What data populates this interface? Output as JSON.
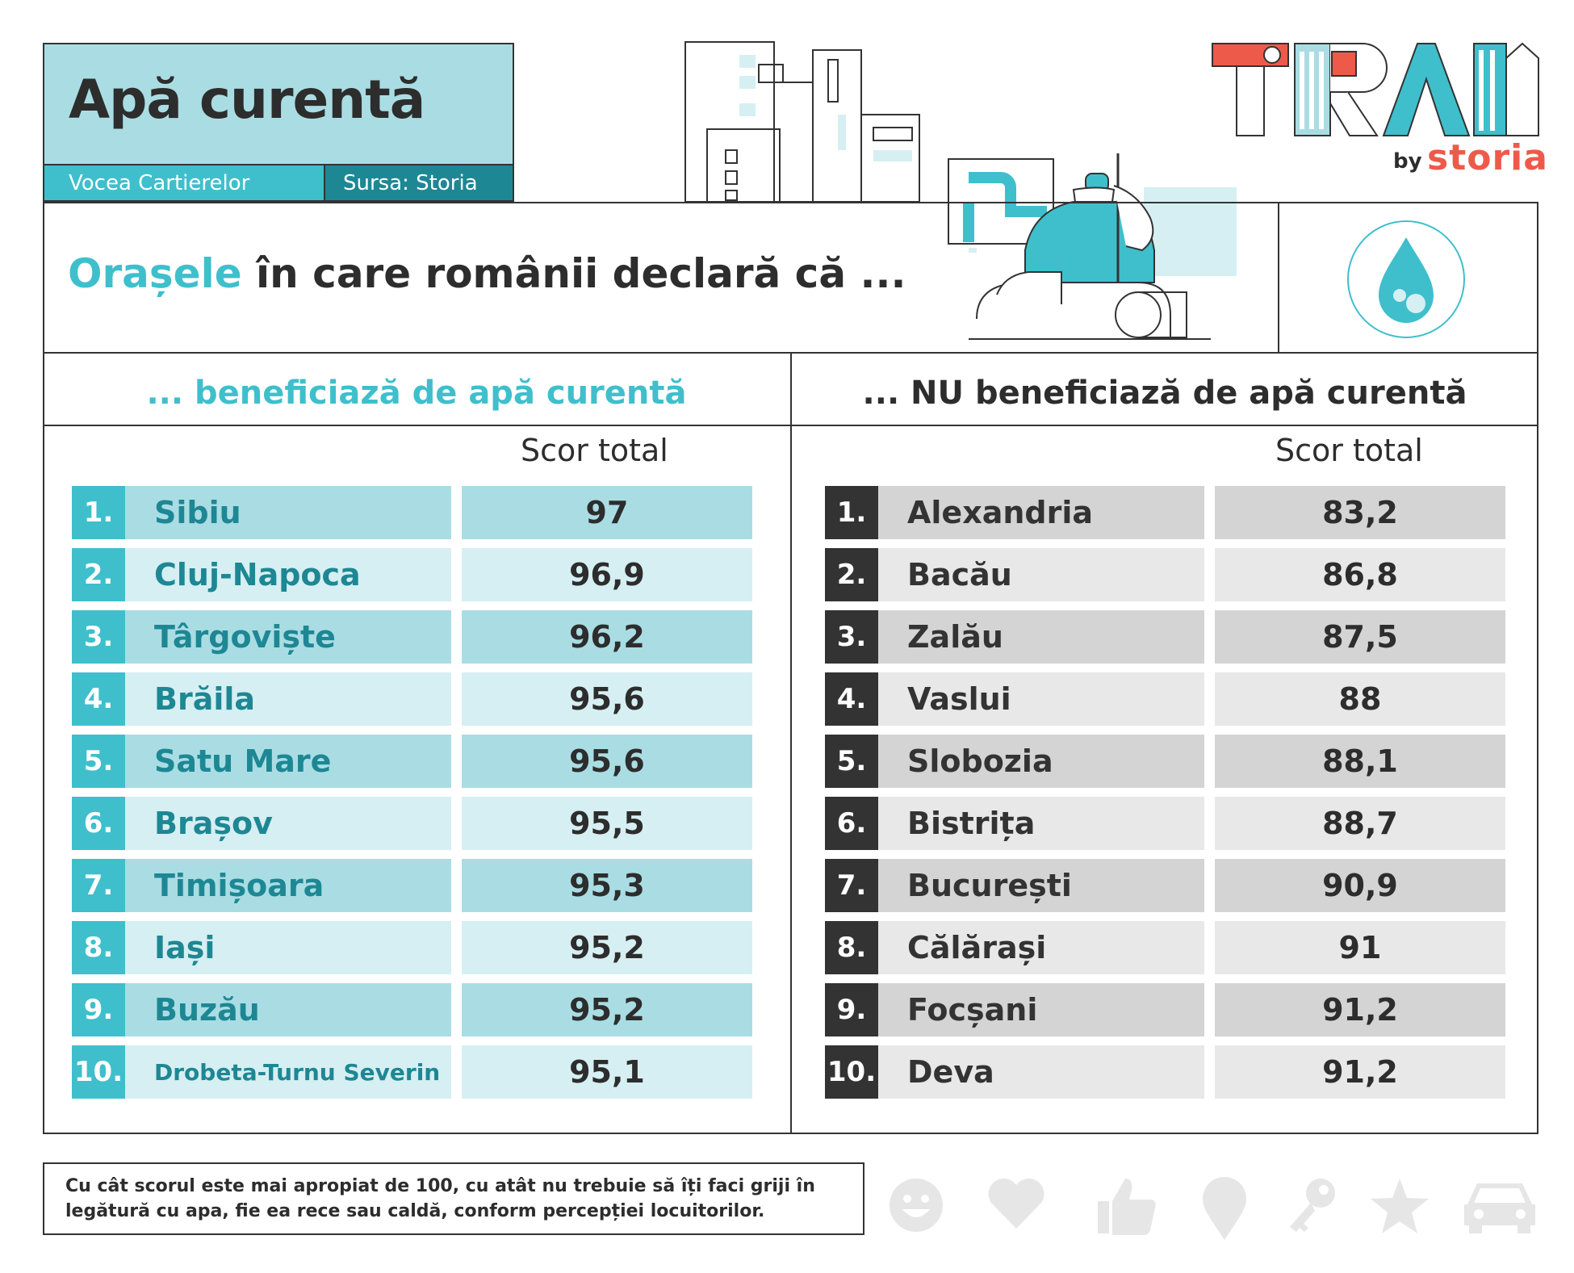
{
  "header": {
    "title": "Apă curentă",
    "tag_left": "Vocea Cartierelor",
    "tag_right": "Sursa: Storia"
  },
  "headline": {
    "highlight": "Orașele",
    "rest": " în care românii declară că ..."
  },
  "columns": {
    "left_title": "... beneficiază de apă curentă",
    "right_title": "... NU beneficiază de apă curentă",
    "score_label": "Scor total"
  },
  "left_rows": [
    {
      "rank": "1.",
      "city": "Sibiu",
      "score": "97"
    },
    {
      "rank": "2.",
      "city": "Cluj-Napoca",
      "score": "96,9"
    },
    {
      "rank": "3.",
      "city": "Târgoviște",
      "score": "96,2"
    },
    {
      "rank": "4.",
      "city": "Brăila",
      "score": "95,6"
    },
    {
      "rank": "5.",
      "city": "Satu Mare",
      "score": "95,6"
    },
    {
      "rank": "6.",
      "city": "Brașov",
      "score": "95,5"
    },
    {
      "rank": "7.",
      "city": "Timișoara",
      "score": "95,3"
    },
    {
      "rank": "8.",
      "city": "Iași",
      "score": "95,2"
    },
    {
      "rank": "9.",
      "city": "Buzău",
      "score": "95,2"
    },
    {
      "rank": "10.",
      "city": "Drobeta-Turnu Severin",
      "score": "95,1"
    }
  ],
  "right_rows": [
    {
      "rank": "1.",
      "city": "Alexandria",
      "score": "83,2"
    },
    {
      "rank": "2.",
      "city": "Bacău",
      "score": "86,8"
    },
    {
      "rank": "3.",
      "city": "Zalău",
      "score": "87,5"
    },
    {
      "rank": "4.",
      "city": "Vaslui",
      "score": "88"
    },
    {
      "rank": "5.",
      "city": "Slobozia",
      "score": "88,1"
    },
    {
      "rank": "6.",
      "city": "Bistrița",
      "score": "88,7"
    },
    {
      "rank": "7.",
      "city": "București",
      "score": "90,9"
    },
    {
      "rank": "8.",
      "city": "Călărași",
      "score": "91"
    },
    {
      "rank": "9.",
      "city": "Focșani",
      "score": "91,2"
    },
    {
      "rank": "10.",
      "city": "Deva",
      "score": "91,2"
    }
  ],
  "footnote": "Cu cât scorul este mai apropiat de 100, cu atât nu trebuie să îți faci griji în legătură cu apa, fie ea rece sau caldă, conform percepției locuitorilor.",
  "logo": {
    "main": "TRAI",
    "by": "by",
    "brand": "storia"
  },
  "icons": [
    "smiley-icon",
    "heart-icon",
    "thumbs-up-icon",
    "location-pin-icon",
    "key-icon",
    "star-icon",
    "car-icon"
  ],
  "colors": {
    "accent": "#3fbfcc",
    "accent_dark": "#1e8794",
    "accent_light": "#a9dde3",
    "brand_red": "#ee5a4a",
    "dark": "#333333"
  }
}
